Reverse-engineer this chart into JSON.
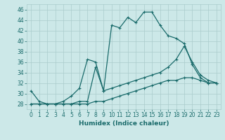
{
  "xlabel": "Humidex (Indice chaleur)",
  "ylabel": "",
  "background_color": "#cce8e8",
  "grid_color": "#aacccc",
  "line_color": "#1a6b6b",
  "xlim": [
    -0.5,
    23.5
  ],
  "ylim": [
    27,
    47
  ],
  "yticks": [
    28,
    30,
    32,
    34,
    36,
    38,
    40,
    42,
    44,
    46
  ],
  "xticks": [
    0,
    1,
    2,
    3,
    4,
    5,
    6,
    7,
    8,
    9,
    10,
    11,
    12,
    13,
    14,
    15,
    16,
    17,
    18,
    19,
    20,
    21,
    22,
    23
  ],
  "series": [
    {
      "x": [
        0,
        1,
        2,
        3,
        4,
        5,
        6,
        7,
        8,
        9,
        10,
        11,
        12,
        13,
        14,
        15,
        16,
        17,
        18,
        19,
        20,
        21,
        22,
        23
      ],
      "y": [
        30.5,
        28.5,
        28.0,
        28.0,
        28.5,
        29.5,
        31.0,
        36.5,
        36.0,
        30.5,
        43.0,
        42.5,
        44.5,
        43.5,
        45.5,
        45.5,
        43.0,
        41.0,
        40.5,
        39.5,
        35.5,
        33.0,
        32.0,
        32.0
      ]
    },
    {
      "x": [
        0,
        1,
        2,
        3,
        4,
        5,
        6,
        7,
        8,
        9,
        10,
        11,
        12,
        13,
        14,
        15,
        16,
        17,
        18,
        19,
        20,
        21,
        22,
        23
      ],
      "y": [
        28.0,
        28.0,
        28.0,
        28.0,
        28.0,
        28.0,
        28.5,
        28.5,
        35.0,
        30.5,
        31.0,
        31.5,
        32.0,
        32.5,
        33.0,
        33.5,
        34.0,
        35.0,
        36.5,
        39.0,
        36.0,
        33.5,
        32.5,
        32.0
      ]
    },
    {
      "x": [
        0,
        1,
        2,
        3,
        4,
        5,
        6,
        7,
        8,
        9,
        10,
        11,
        12,
        13,
        14,
        15,
        16,
        17,
        18,
        19,
        20,
        21,
        22,
        23
      ],
      "y": [
        28.0,
        28.0,
        28.0,
        28.0,
        28.0,
        28.0,
        28.0,
        28.0,
        28.5,
        28.5,
        29.0,
        29.5,
        30.0,
        30.5,
        31.0,
        31.5,
        32.0,
        32.5,
        32.5,
        33.0,
        33.0,
        32.5,
        32.0,
        32.0
      ]
    }
  ]
}
